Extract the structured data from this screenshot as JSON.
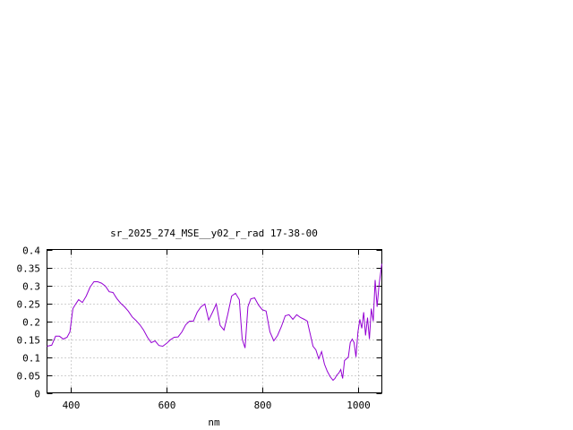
{
  "chart_data": {
    "type": "line",
    "title": "sr_2025_274_MSE__y02_r_rad 17-38-00",
    "xlabel": "nm",
    "ylabel": "",
    "xlim": [
      350,
      1050
    ],
    "ylim": [
      0,
      0.4
    ],
    "x_ticks": [
      400,
      600,
      800,
      1000
    ],
    "x_tick_labels": [
      "400",
      "600",
      "800",
      "1000"
    ],
    "y_ticks": [
      0,
      0.05,
      0.1,
      0.15,
      0.2,
      0.25,
      0.3,
      0.35,
      0.4
    ],
    "y_tick_labels": [
      "0",
      "0.05",
      "0.1",
      "0.15",
      "0.2",
      "0.25",
      "0.3",
      "0.35",
      "0.4"
    ],
    "grid": true,
    "line_color": "#9400d3",
    "series": [
      {
        "x": [
          350,
          360,
          368,
          376,
          384,
          392,
          398,
          404,
          410,
          416,
          424,
          432,
          440,
          448,
          456,
          464,
          472,
          480,
          488,
          496,
          504,
          512,
          520,
          528,
          536,
          544,
          552,
          560,
          568,
          576,
          584,
          592,
          600,
          608,
          616,
          624,
          632,
          640,
          648,
          656,
          664,
          672,
          680,
          688,
          696,
          704,
          712,
          720,
          728,
          736,
          744,
          752,
          758,
          764,
          770,
          776,
          784,
          792,
          800,
          808,
          816,
          824,
          832,
          840,
          848,
          856,
          864,
          872,
          880,
          888,
          894,
          900,
          906,
          912,
          918,
          924,
          930,
          936,
          942,
          948,
          952,
          956,
          960,
          964,
          968,
          972,
          976,
          980,
          984,
          988,
          992,
          996,
          1000,
          1004,
          1008,
          1012,
          1016,
          1020,
          1024,
          1028,
          1032,
          1036,
          1040,
          1044,
          1050
        ],
        "y": [
          0.13,
          0.133,
          0.158,
          0.158,
          0.15,
          0.155,
          0.17,
          0.235,
          0.248,
          0.26,
          0.252,
          0.27,
          0.295,
          0.31,
          0.31,
          0.306,
          0.298,
          0.282,
          0.28,
          0.263,
          0.25,
          0.24,
          0.228,
          0.212,
          0.202,
          0.19,
          0.175,
          0.155,
          0.14,
          0.145,
          0.132,
          0.13,
          0.138,
          0.148,
          0.155,
          0.156,
          0.17,
          0.19,
          0.2,
          0.2,
          0.225,
          0.24,
          0.248,
          0.203,
          0.225,
          0.248,
          0.188,
          0.175,
          0.22,
          0.27,
          0.278,
          0.26,
          0.15,
          0.125,
          0.24,
          0.262,
          0.265,
          0.245,
          0.232,
          0.228,
          0.17,
          0.145,
          0.16,
          0.185,
          0.215,
          0.218,
          0.205,
          0.218,
          0.21,
          0.205,
          0.2,
          0.165,
          0.13,
          0.12,
          0.095,
          0.115,
          0.08,
          0.06,
          0.045,
          0.035,
          0.04,
          0.05,
          0.055,
          0.065,
          0.04,
          0.09,
          0.095,
          0.1,
          0.14,
          0.15,
          0.14,
          0.1,
          0.17,
          0.205,
          0.18,
          0.225,
          0.16,
          0.21,
          0.15,
          0.235,
          0.2,
          0.315,
          0.24,
          0.3,
          0.36
        ]
      }
    ]
  }
}
